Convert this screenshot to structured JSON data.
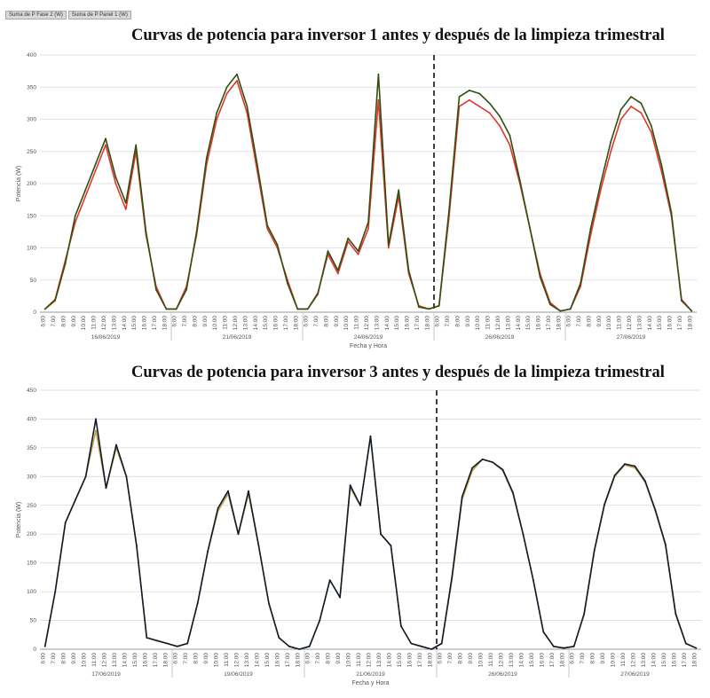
{
  "chart_data": [
    {
      "type": "line",
      "title": "Curvas de potencia para inversor 1 antes y después de la limpieza trimestral",
      "legend": [
        "Suma de P Fase 2 (W)",
        "Suma de P Panel 1 (W)"
      ],
      "ylabel": "Potencia (W)",
      "xlabel": "Fecha y Hora",
      "ylim": [
        0,
        400
      ],
      "yticks": [
        0,
        50,
        100,
        150,
        200,
        250,
        300,
        350,
        400
      ],
      "days": [
        "16/06/2019",
        "21/06/2019",
        "24/06/2019",
        "26/06/2019",
        "27/06/2019"
      ],
      "x_hours": [
        6,
        7,
        8,
        9,
        10,
        11,
        12,
        13,
        14,
        15,
        16,
        17,
        18
      ],
      "cleaning_marker_day_index": 3,
      "series": [
        {
          "name": "Suma de P Fase 2 (W)",
          "color": "#e0362c",
          "days": [
            [
              5,
              20,
              80,
              140,
              180,
              220,
              260,
              200,
              160,
              250,
              120,
              40,
              5
            ],
            [
              5,
              40,
              120,
              230,
              300,
              340,
              360,
              310,
              220,
              130,
              100,
              50,
              5
            ],
            [
              5,
              30,
              90,
              60,
              110,
              90,
              130,
              330,
              100,
              180,
              60,
              10,
              5
            ],
            [
              10,
              150,
              320,
              330,
              320,
              310,
              290,
              260,
              200,
              130,
              60,
              15,
              2
            ],
            [
              5,
              40,
              120,
              190,
              250,
              300,
              320,
              310,
              280,
              220,
              150,
              20,
              2
            ]
          ]
        },
        {
          "name": "Suma de P Panel 1 (W)",
          "color": "#2f4f12",
          "days": [
            [
              5,
              18,
              75,
              150,
              190,
              230,
              270,
              210,
              170,
              260,
              125,
              35,
              5
            ],
            [
              5,
              35,
              125,
              240,
              310,
              350,
              370,
              320,
              230,
              135,
              105,
              45,
              5
            ],
            [
              5,
              28,
              95,
              65,
              115,
              95,
              140,
              370,
              105,
              190,
              65,
              8,
              5
            ],
            [
              10,
              160,
              335,
              345,
              340,
              325,
              305,
              275,
              205,
              130,
              55,
              12,
              2
            ],
            [
              5,
              45,
              130,
              200,
              265,
              315,
              335,
              325,
              290,
              230,
              155,
              18,
              2
            ]
          ]
        }
      ]
    },
    {
      "type": "line",
      "title": "Curvas de potencia para inversor 3 antes y después de la limpieza trimestral",
      "ylabel": "Potencia (W)",
      "xlabel": "Fecha y Hora",
      "ylim": [
        0,
        450
      ],
      "yticks": [
        0,
        50,
        100,
        150,
        200,
        250,
        300,
        350,
        400,
        450
      ],
      "days": [
        "17/06/2019",
        "19/06/2019",
        "21/06/2019",
        "26/06/2019",
        "27/06/2019"
      ],
      "x_hours": [
        6,
        7,
        8,
        9,
        10,
        11,
        12,
        13,
        14,
        15,
        16,
        17,
        18
      ],
      "cleaning_marker_day_index": 3,
      "series": [
        {
          "name": "",
          "color": "#c8a24a",
          "days": [
            [
              5,
              100,
              220,
              260,
              300,
              380,
              280,
              350,
              300,
              180,
              20,
              15,
              10
            ],
            [
              5,
              10,
              80,
              170,
              240,
              270,
              200,
              270,
              180,
              80,
              20,
              5,
              0
            ],
            [
              5,
              50,
              120,
              90,
              280,
              250,
              370,
              200,
              180,
              40,
              10,
              5,
              0
            ],
            [
              10,
              120,
              260,
              310,
              330,
              325,
              310,
              270,
              200,
              120,
              30,
              5,
              2
            ],
            [
              5,
              60,
              170,
              250,
              300,
              320,
              315,
              290,
              240,
              180,
              60,
              10,
              2
            ]
          ]
        },
        {
          "name": "",
          "color": "#0d1b2e",
          "days": [
            [
              5,
              100,
              220,
              260,
              300,
              400,
              280,
              355,
              300,
              180,
              20,
              15,
              10
            ],
            [
              5,
              10,
              80,
              170,
              245,
              275,
              200,
              275,
              180,
              80,
              20,
              5,
              0
            ],
            [
              5,
              50,
              120,
              90,
              285,
              250,
              370,
              200,
              180,
              40,
              10,
              5,
              0
            ],
            [
              10,
              125,
              265,
              315,
              330,
              325,
              312,
              272,
              200,
              120,
              30,
              5,
              2
            ],
            [
              5,
              62,
              172,
              252,
              302,
              322,
              318,
              292,
              242,
              182,
              62,
              10,
              2
            ]
          ]
        }
      ]
    }
  ]
}
